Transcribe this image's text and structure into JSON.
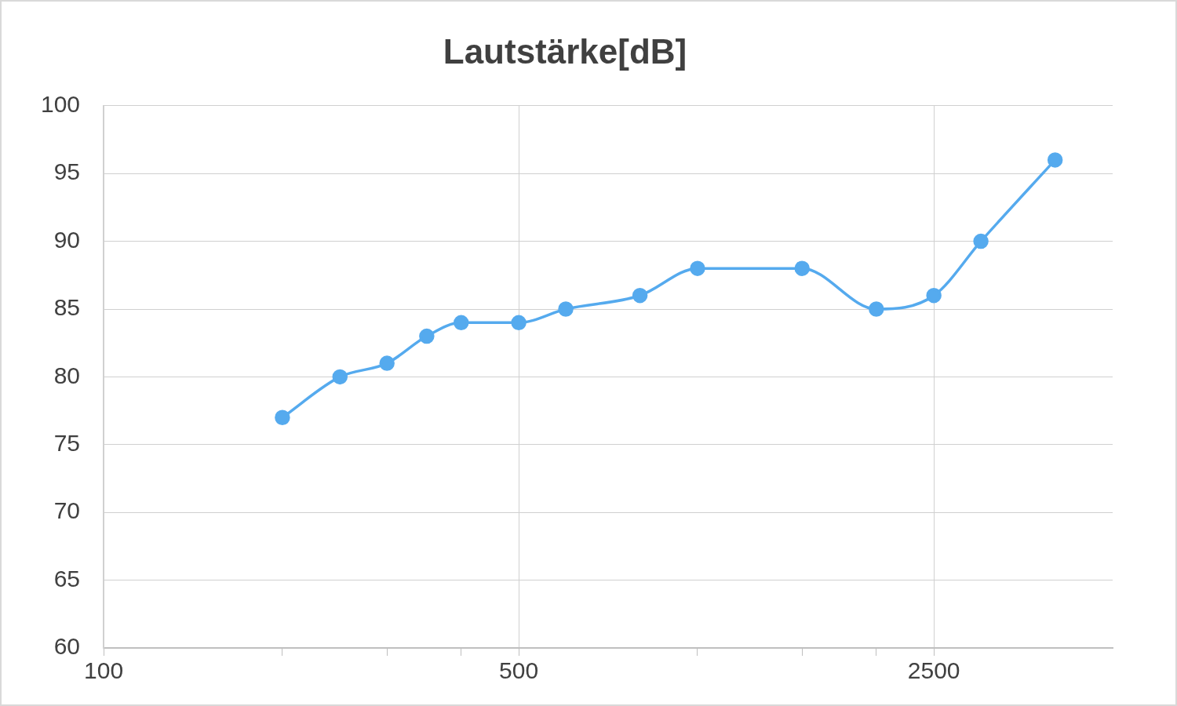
{
  "chart_data": {
    "type": "line",
    "title": "Lautstärke[dB]",
    "x": [
      200,
      250,
      300,
      350,
      400,
      500,
      600,
      800,
      1000,
      1500,
      2000,
      2500,
      3000,
      4000
    ],
    "series": [
      {
        "color": "#55aaee",
        "values": [
          77,
          80,
          81,
          83,
          84,
          84,
          85,
          86,
          88,
          88,
          85,
          86,
          90,
          96
        ]
      }
    ],
    "log": "x",
    "xlim": [
      100,
      5000
    ],
    "xticks": [
      100,
      {
        "value": 200,
        "label": null
      },
      {
        "value": 300,
        "label": null
      },
      {
        "value": 400,
        "label": null
      },
      500,
      {
        "value": 1000,
        "label": null
      },
      {
        "value": 1500,
        "label": null
      },
      {
        "value": 2000,
        "label": null
      },
      2500
    ],
    "ylim": [
      60,
      100
    ],
    "yticks": [
      60,
      65,
      70,
      75,
      80,
      85,
      90,
      95,
      100
    ],
    "grid": true,
    "legend": false,
    "marker": "circle",
    "line_style": "solid"
  }
}
